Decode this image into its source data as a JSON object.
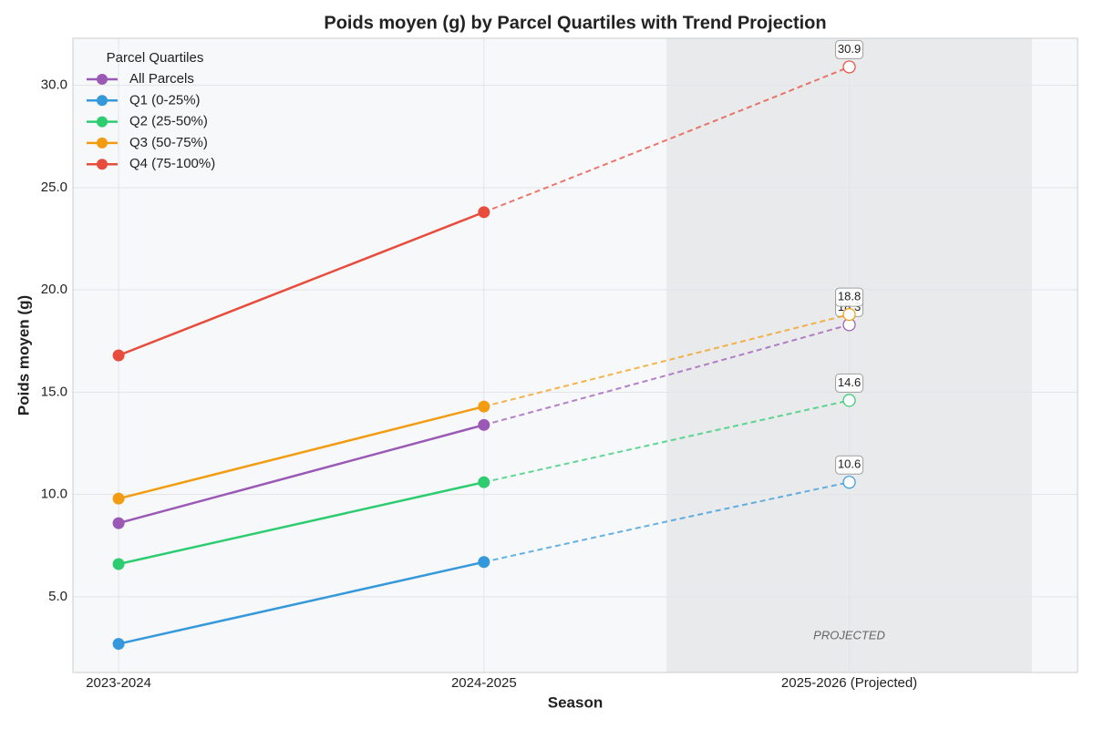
{
  "chart_data": {
    "type": "line",
    "title": "Poids moyen (g) by Parcel Quartiles with Trend Projection",
    "xlabel": "Season",
    "ylabel": "Poids moyen (g)",
    "categories": [
      "2023-2024",
      "2024-2025",
      "2025-2026 (Projected)"
    ],
    "series": [
      {
        "name": "All Parcels",
        "color": "#9b59b6",
        "values": [
          8.6,
          13.4,
          18.3
        ]
      },
      {
        "name": "Q1 (0-25%)",
        "color": "#3498db",
        "values": [
          2.7,
          6.7,
          10.6
        ]
      },
      {
        "name": "Q2 (25-50%)",
        "color": "#2ecc71",
        "values": [
          6.6,
          10.6,
          14.6
        ]
      },
      {
        "name": "Q3 (50-75%)",
        "color": "#f39c12",
        "values": [
          9.8,
          14.3,
          18.8
        ]
      },
      {
        "name": "Q4 (75-100%)",
        "color": "#e74c3c",
        "values": [
          16.8,
          23.8,
          30.9
        ]
      }
    ],
    "ylim": [
      1.3,
      32.3
    ],
    "yticks": [
      {
        "value": 5,
        "label": "5.0"
      },
      {
        "value": 10,
        "label": "10.0"
      },
      {
        "value": 15,
        "label": "15.0"
      },
      {
        "value": 20,
        "label": "20.0"
      },
      {
        "value": 25,
        "label": "25.0"
      },
      {
        "value": 30,
        "label": "30.0"
      }
    ],
    "legend_title": "Parcel Quartiles",
    "legend": "upper left",
    "annotation": "PROJECTED",
    "grid": true
  }
}
